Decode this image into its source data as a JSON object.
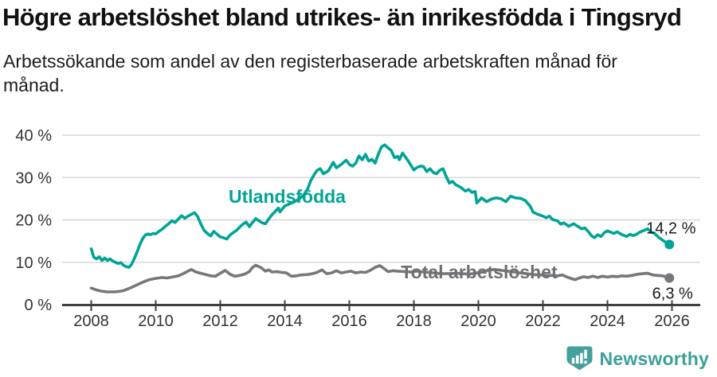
{
  "header": {
    "title": "Högre arbetslöshet bland utrikes- än inrikesfödda i Tingsryd",
    "subtitle": "Arbetssökande som andel av den registerbaserade arbetskraften månad för månad."
  },
  "chart_data": {
    "type": "line",
    "title": "Högre arbetslöshet bland utrikes- än inrikesfödda i Tingsryd",
    "subtitle": "Arbetssökande som andel av den registerbaserade arbetskraften månad för månad.",
    "unit": "%",
    "x_axis": {
      "ticks": [
        2008,
        2010,
        2012,
        2014,
        2016,
        2018,
        2020,
        2022,
        2024,
        2026
      ],
      "range": [
        2007.1,
        2026.9
      ]
    },
    "y_axis": {
      "ticks": [
        0,
        10,
        20,
        30,
        40
      ],
      "tick_labels": [
        "0 %",
        "10 %",
        "20 %",
        "30 %",
        "40 %"
      ],
      "range": [
        0,
        40
      ],
      "grid": true
    },
    "legend_position": "inline-labels",
    "colors": {
      "utlandsfodda": "#00a496",
      "total": "#77777c",
      "grid": "#d8d8d8",
      "axis": "#3f3f3f",
      "tick_text": "#333333",
      "end_label_text": "#1a1a1a"
    },
    "series": [
      {
        "name": "Utlandsfödda",
        "color": "#00a496",
        "label_color": "#00a496",
        "end_label": "14,2 %",
        "end_value": 14.2,
        "label_anchor": {
          "x": 2012.26,
          "y": 24.0
        },
        "end_label_offset": [
          2,
          -14
        ],
        "points": [
          [
            2008.0,
            13.2
          ],
          [
            2008.08,
            11.2
          ],
          [
            2008.17,
            10.8
          ],
          [
            2008.25,
            11.3
          ],
          [
            2008.33,
            10.4
          ],
          [
            2008.42,
            11.0
          ],
          [
            2008.5,
            10.4
          ],
          [
            2008.58,
            10.8
          ],
          [
            2008.67,
            10.3
          ],
          [
            2008.75,
            10.0
          ],
          [
            2008.83,
            9.7
          ],
          [
            2008.92,
            9.9
          ],
          [
            2009.0,
            9.3
          ],
          [
            2009.08,
            9.0
          ],
          [
            2009.17,
            8.8
          ],
          [
            2009.25,
            9.5
          ],
          [
            2009.33,
            10.8
          ],
          [
            2009.42,
            12.4
          ],
          [
            2009.5,
            14.0
          ],
          [
            2009.58,
            15.4
          ],
          [
            2009.67,
            16.4
          ],
          [
            2009.75,
            16.7
          ],
          [
            2009.83,
            16.5
          ],
          [
            2009.92,
            16.8
          ],
          [
            2010.0,
            16.7
          ],
          [
            2010.1,
            17.3
          ],
          [
            2010.2,
            17.8
          ],
          [
            2010.3,
            18.5
          ],
          [
            2010.4,
            19.1
          ],
          [
            2010.5,
            19.8
          ],
          [
            2010.6,
            19.4
          ],
          [
            2010.7,
            20.2
          ],
          [
            2010.8,
            21.0
          ],
          [
            2010.9,
            20.4
          ],
          [
            2011.0,
            20.9
          ],
          [
            2011.1,
            21.3
          ],
          [
            2011.2,
            21.7
          ],
          [
            2011.3,
            20.8
          ],
          [
            2011.4,
            19.0
          ],
          [
            2011.5,
            17.5
          ],
          [
            2011.6,
            16.8
          ],
          [
            2011.7,
            16.2
          ],
          [
            2011.8,
            17.3
          ],
          [
            2011.9,
            16.6
          ],
          [
            2012.0,
            16.0
          ],
          [
            2012.1,
            15.8
          ],
          [
            2012.2,
            15.5
          ],
          [
            2012.3,
            16.4
          ],
          [
            2012.4,
            17.0
          ],
          [
            2012.5,
            17.5
          ],
          [
            2012.6,
            18.3
          ],
          [
            2012.7,
            19.0
          ],
          [
            2012.8,
            19.5
          ],
          [
            2012.9,
            18.4
          ],
          [
            2013.0,
            19.4
          ],
          [
            2013.1,
            20.3
          ],
          [
            2013.2,
            19.8
          ],
          [
            2013.3,
            19.3
          ],
          [
            2013.4,
            19.1
          ],
          [
            2013.5,
            20.2
          ],
          [
            2013.6,
            21.2
          ],
          [
            2013.7,
            22.0
          ],
          [
            2013.8,
            22.8
          ],
          [
            2013.85,
            21.9
          ],
          [
            2014.0,
            23.3
          ],
          [
            2014.15,
            23.8
          ],
          [
            2014.3,
            24.3
          ],
          [
            2014.45,
            25.0
          ],
          [
            2014.6,
            26.0
          ],
          [
            2014.7,
            27.2
          ],
          [
            2014.8,
            29.2
          ],
          [
            2014.9,
            30.6
          ],
          [
            2015.0,
            31.7
          ],
          [
            2015.1,
            32.1
          ],
          [
            2015.2,
            30.9
          ],
          [
            2015.35,
            31.6
          ],
          [
            2015.5,
            33.6
          ],
          [
            2015.6,
            32.3
          ],
          [
            2015.75,
            33.1
          ],
          [
            2015.9,
            34.1
          ],
          [
            2016.0,
            33.1
          ],
          [
            2016.1,
            32.7
          ],
          [
            2016.2,
            33.4
          ],
          [
            2016.3,
            35.1
          ],
          [
            2016.4,
            34.2
          ],
          [
            2016.5,
            35.5
          ],
          [
            2016.6,
            33.9
          ],
          [
            2016.7,
            34.3
          ],
          [
            2016.8,
            33.4
          ],
          [
            2016.9,
            35.6
          ],
          [
            2017.0,
            37.3
          ],
          [
            2017.1,
            37.7
          ],
          [
            2017.2,
            37.0
          ],
          [
            2017.3,
            36.4
          ],
          [
            2017.4,
            34.7
          ],
          [
            2017.5,
            35.0
          ],
          [
            2017.55,
            34.2
          ],
          [
            2017.65,
            35.8
          ],
          [
            2017.8,
            34.2
          ],
          [
            2017.9,
            33.0
          ],
          [
            2018.0,
            31.8
          ],
          [
            2018.1,
            32.4
          ],
          [
            2018.2,
            32.7
          ],
          [
            2018.3,
            32.6
          ],
          [
            2018.4,
            31.4
          ],
          [
            2018.5,
            32.1
          ],
          [
            2018.6,
            31.2
          ],
          [
            2018.7,
            30.9
          ],
          [
            2018.8,
            31.7
          ],
          [
            2018.9,
            32.1
          ],
          [
            2019.0,
            30.3
          ],
          [
            2019.1,
            28.7
          ],
          [
            2019.2,
            29.1
          ],
          [
            2019.3,
            28.3
          ],
          [
            2019.45,
            27.7
          ],
          [
            2019.6,
            26.8
          ],
          [
            2019.7,
            27.2
          ],
          [
            2019.8,
            26.5
          ],
          [
            2019.9,
            26.7
          ],
          [
            2019.95,
            24.0
          ],
          [
            2020.1,
            25.2
          ],
          [
            2020.25,
            24.3
          ],
          [
            2020.4,
            24.9
          ],
          [
            2020.55,
            25.2
          ],
          [
            2020.7,
            25.0
          ],
          [
            2020.85,
            24.3
          ],
          [
            2021.0,
            25.6
          ],
          [
            2021.15,
            25.2
          ],
          [
            2021.3,
            25.1
          ],
          [
            2021.45,
            24.6
          ],
          [
            2021.6,
            23.3
          ],
          [
            2021.7,
            21.8
          ],
          [
            2021.85,
            21.3
          ],
          [
            2022.0,
            20.9
          ],
          [
            2022.1,
            20.5
          ],
          [
            2022.2,
            20.9
          ],
          [
            2022.3,
            20.1
          ],
          [
            2022.45,
            19.8
          ],
          [
            2022.55,
            19.0
          ],
          [
            2022.65,
            19.3
          ],
          [
            2022.8,
            18.5
          ],
          [
            2022.95,
            19.1
          ],
          [
            2023.1,
            18.4
          ],
          [
            2023.2,
            17.9
          ],
          [
            2023.3,
            18.1
          ],
          [
            2023.4,
            17.3
          ],
          [
            2023.5,
            16.3
          ],
          [
            2023.6,
            15.8
          ],
          [
            2023.7,
            16.5
          ],
          [
            2023.8,
            16.1
          ],
          [
            2023.9,
            17.0
          ],
          [
            2024.0,
            17.4
          ],
          [
            2024.1,
            17.1
          ],
          [
            2024.2,
            16.8
          ],
          [
            2024.3,
            17.2
          ],
          [
            2024.45,
            16.5
          ],
          [
            2024.6,
            16.1
          ],
          [
            2024.7,
            16.6
          ],
          [
            2024.8,
            16.3
          ],
          [
            2024.9,
            16.6
          ],
          [
            2025.0,
            17.1
          ],
          [
            2025.1,
            17.4
          ],
          [
            2025.25,
            17.9
          ],
          [
            2025.35,
            17.1
          ],
          [
            2025.45,
            16.9
          ],
          [
            2025.6,
            15.8
          ],
          [
            2025.75,
            15.0
          ],
          [
            2025.92,
            14.2
          ]
        ]
      },
      {
        "name": "Total arbetslöshet",
        "color": "#77777c",
        "label_color": "#6f6f74",
        "end_label": "6,3 %",
        "end_value": 6.3,
        "label_anchor": {
          "x": 2017.6,
          "y": 6.2
        },
        "end_label_offset": [
          4,
          26
        ],
        "points": [
          [
            2008.0,
            3.9
          ],
          [
            2008.15,
            3.5
          ],
          [
            2008.3,
            3.2
          ],
          [
            2008.5,
            3.0
          ],
          [
            2008.7,
            3.0
          ],
          [
            2008.85,
            3.1
          ],
          [
            2009.0,
            3.3
          ],
          [
            2009.2,
            3.9
          ],
          [
            2009.4,
            4.6
          ],
          [
            2009.6,
            5.3
          ],
          [
            2009.8,
            5.9
          ],
          [
            2010.0,
            6.2
          ],
          [
            2010.2,
            6.4
          ],
          [
            2010.35,
            6.3
          ],
          [
            2010.5,
            6.5
          ],
          [
            2010.7,
            6.8
          ],
          [
            2010.85,
            7.3
          ],
          [
            2011.0,
            7.9
          ],
          [
            2011.1,
            8.3
          ],
          [
            2011.25,
            7.7
          ],
          [
            2011.4,
            7.4
          ],
          [
            2011.55,
            7.1
          ],
          [
            2011.7,
            6.8
          ],
          [
            2011.85,
            6.7
          ],
          [
            2012.0,
            7.4
          ],
          [
            2012.15,
            8.1
          ],
          [
            2012.3,
            7.2
          ],
          [
            2012.45,
            6.7
          ],
          [
            2012.6,
            6.9
          ],
          [
            2012.75,
            7.2
          ],
          [
            2012.9,
            7.8
          ],
          [
            2013.0,
            8.8
          ],
          [
            2013.1,
            9.3
          ],
          [
            2013.25,
            8.8
          ],
          [
            2013.4,
            7.9
          ],
          [
            2013.5,
            8.2
          ],
          [
            2013.6,
            7.7
          ],
          [
            2013.75,
            7.8
          ],
          [
            2013.9,
            7.6
          ],
          [
            2014.05,
            7.5
          ],
          [
            2014.2,
            6.7
          ],
          [
            2014.35,
            6.8
          ],
          [
            2014.5,
            7.0
          ],
          [
            2014.7,
            7.1
          ],
          [
            2014.85,
            7.3
          ],
          [
            2015.0,
            7.6
          ],
          [
            2015.15,
            8.2
          ],
          [
            2015.3,
            7.3
          ],
          [
            2015.45,
            7.5
          ],
          [
            2015.6,
            8.0
          ],
          [
            2015.75,
            7.5
          ],
          [
            2015.9,
            7.7
          ],
          [
            2016.05,
            7.9
          ],
          [
            2016.2,
            7.5
          ],
          [
            2016.35,
            7.7
          ],
          [
            2016.5,
            7.6
          ],
          [
            2016.65,
            8.1
          ],
          [
            2016.8,
            8.8
          ],
          [
            2016.95,
            9.2
          ],
          [
            2017.1,
            8.4
          ],
          [
            2017.2,
            7.8
          ],
          [
            2017.35,
            8.0
          ],
          [
            2017.5,
            7.9
          ],
          [
            2017.7,
            7.8
          ],
          [
            2017.9,
            7.7
          ],
          [
            2018.1,
            7.9
          ],
          [
            2018.3,
            7.7
          ],
          [
            2018.5,
            7.6
          ],
          [
            2018.7,
            7.4
          ],
          [
            2018.9,
            7.3
          ],
          [
            2019.1,
            7.3
          ],
          [
            2019.3,
            7.4
          ],
          [
            2019.5,
            7.3
          ],
          [
            2019.7,
            7.2
          ],
          [
            2019.9,
            7.4
          ],
          [
            2020.1,
            7.7
          ],
          [
            2020.3,
            8.1
          ],
          [
            2020.5,
            8.3
          ],
          [
            2020.7,
            8.1
          ],
          [
            2020.9,
            7.9
          ],
          [
            2021.1,
            7.7
          ],
          [
            2021.3,
            7.5
          ],
          [
            2021.5,
            7.3
          ],
          [
            2021.7,
            7.1
          ],
          [
            2021.9,
            7.0
          ],
          [
            2022.1,
            6.9
          ],
          [
            2022.3,
            6.9
          ],
          [
            2022.45,
            6.8
          ],
          [
            2022.6,
            7.0
          ],
          [
            2022.75,
            6.5
          ],
          [
            2022.9,
            6.1
          ],
          [
            2023.0,
            5.9
          ],
          [
            2023.1,
            6.2
          ],
          [
            2023.25,
            6.6
          ],
          [
            2023.4,
            6.4
          ],
          [
            2023.55,
            6.7
          ],
          [
            2023.7,
            6.4
          ],
          [
            2023.85,
            6.7
          ],
          [
            2024.0,
            6.5
          ],
          [
            2024.15,
            6.7
          ],
          [
            2024.3,
            6.6
          ],
          [
            2024.45,
            6.8
          ],
          [
            2024.6,
            6.7
          ],
          [
            2024.75,
            6.9
          ],
          [
            2024.95,
            7.2
          ],
          [
            2025.1,
            7.3
          ],
          [
            2025.25,
            7.4
          ],
          [
            2025.4,
            7.0
          ],
          [
            2025.55,
            6.9
          ],
          [
            2025.7,
            6.8
          ],
          [
            2025.8,
            6.6
          ],
          [
            2025.92,
            6.3
          ]
        ]
      }
    ]
  },
  "footer": {
    "brand": "Newsworthy",
    "logo_icon": "bar-chart-exclamation-bubble",
    "logo_color": "#43a09a"
  }
}
